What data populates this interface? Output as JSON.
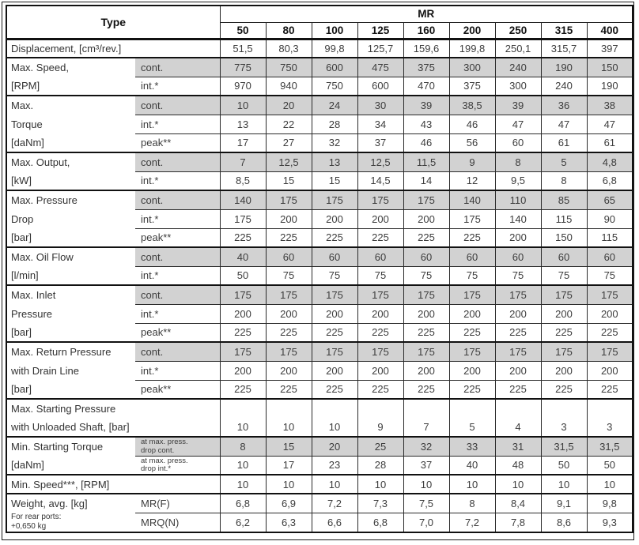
{
  "header": {
    "type_label": "Type",
    "group_label": "MR",
    "columns": [
      "50",
      "80",
      "100",
      "125",
      "160",
      "200",
      "250",
      "315",
      "400"
    ]
  },
  "sections": [
    {
      "rows": [
        {
          "label": "Displacement,  [cm³/rev.]",
          "full_label": true,
          "shaded": false,
          "values": [
            "51,5",
            "80,3",
            "99,8",
            "125,7",
            "159,6",
            "199,8",
            "250,1",
            "315,7",
            "397"
          ]
        }
      ]
    },
    {
      "rows": [
        {
          "label": "Max. Speed,",
          "type": "cont.",
          "shaded": true,
          "values": [
            "775",
            "750",
            "600",
            "475",
            "375",
            "300",
            "240",
            "190",
            "150"
          ]
        },
        {
          "label": "[RPM]",
          "type": "int.*",
          "shaded": false,
          "values": [
            "970",
            "940",
            "750",
            "600",
            "470",
            "375",
            "300",
            "240",
            "190"
          ]
        }
      ]
    },
    {
      "rows": [
        {
          "label": "Max.",
          "type": "cont.",
          "shaded": true,
          "values": [
            "10",
            "20",
            "24",
            "30",
            "39",
            "38,5",
            "39",
            "36",
            "38"
          ]
        },
        {
          "label": "Torque",
          "type": "int.*",
          "shaded": false,
          "values": [
            "13",
            "22",
            "28",
            "34",
            "43",
            "46",
            "47",
            "47",
            "47"
          ]
        },
        {
          "label": "[daNm]",
          "type": "peak**",
          "shaded": false,
          "values": [
            "17",
            "27",
            "32",
            "37",
            "46",
            "56",
            "60",
            "61",
            "61"
          ]
        }
      ]
    },
    {
      "rows": [
        {
          "label": "Max. Output,",
          "type": "cont.",
          "shaded": true,
          "values": [
            "7",
            "12,5",
            "13",
            "12,5",
            "11,5",
            "9",
            "8",
            "5",
            "4,8"
          ]
        },
        {
          "label": "[kW]",
          "type": "int.*",
          "shaded": false,
          "values": [
            "8,5",
            "15",
            "15",
            "14,5",
            "14",
            "12",
            "9,5",
            "8",
            "6,8"
          ]
        }
      ]
    },
    {
      "rows": [
        {
          "label": "Max. Pressure",
          "type": "cont.",
          "shaded": true,
          "values": [
            "140",
            "175",
            "175",
            "175",
            "175",
            "140",
            "110",
            "85",
            "65"
          ]
        },
        {
          "label": "Drop",
          "type": "int.*",
          "shaded": false,
          "values": [
            "175",
            "200",
            "200",
            "200",
            "200",
            "175",
            "140",
            "115",
            "90"
          ]
        },
        {
          "label": "[bar]",
          "type": "peak**",
          "shaded": false,
          "values": [
            "225",
            "225",
            "225",
            "225",
            "225",
            "225",
            "200",
            "150",
            "115"
          ]
        }
      ]
    },
    {
      "rows": [
        {
          "label": "Max. Oil Flow",
          "type": "cont.",
          "shaded": true,
          "values": [
            "40",
            "60",
            "60",
            "60",
            "60",
            "60",
            "60",
            "60",
            "60"
          ]
        },
        {
          "label": "[l/min]",
          "type": "int.*",
          "shaded": false,
          "values": [
            "50",
            "75",
            "75",
            "75",
            "75",
            "75",
            "75",
            "75",
            "75"
          ]
        }
      ]
    },
    {
      "rows": [
        {
          "label": "Max. Inlet",
          "type": "cont.",
          "shaded": true,
          "values": [
            "175",
            "175",
            "175",
            "175",
            "175",
            "175",
            "175",
            "175",
            "175"
          ]
        },
        {
          "label": "Pressure",
          "type": "int.*",
          "shaded": false,
          "values": [
            "200",
            "200",
            "200",
            "200",
            "200",
            "200",
            "200",
            "200",
            "200"
          ]
        },
        {
          "label": "[bar]",
          "type": "peak**",
          "shaded": false,
          "values": [
            "225",
            "225",
            "225",
            "225",
            "225",
            "225",
            "225",
            "225",
            "225"
          ]
        }
      ]
    },
    {
      "rows": [
        {
          "label": "Max. Return Pressure",
          "type": "cont.",
          "shaded": true,
          "values": [
            "175",
            "175",
            "175",
            "175",
            "175",
            "175",
            "175",
            "175",
            "175"
          ]
        },
        {
          "label": "with Drain Line",
          "type": "int.*",
          "shaded": false,
          "values": [
            "200",
            "200",
            "200",
            "200",
            "200",
            "200",
            "200",
            "200",
            "200"
          ]
        },
        {
          "label": "[bar]",
          "type": "peak**",
          "shaded": false,
          "values": [
            "225",
            "225",
            "225",
            "225",
            "225",
            "225",
            "225",
            "225",
            "225"
          ]
        }
      ]
    },
    {
      "values_merged": true,
      "rows": [
        {
          "label": "Max. Starting Pressure",
          "full_label": true,
          "shaded": false,
          "values": [
            "",
            "",
            "",
            "",
            "",
            "",
            "",
            "",
            ""
          ]
        },
        {
          "label": "with Unloaded Shaft, [bar]",
          "full_label": true,
          "shaded": false,
          "values": [
            "10",
            "10",
            "10",
            "9",
            "7",
            "5",
            "4",
            "3",
            "3"
          ]
        }
      ]
    },
    {
      "rows": [
        {
          "label": "Min. Starting Torque",
          "type": "at max. press.\ndrop cont.",
          "type_small": true,
          "shaded": true,
          "values": [
            "8",
            "15",
            "20",
            "25",
            "32",
            "33",
            "31",
            "31,5",
            "31,5"
          ]
        },
        {
          "label": "[daNm]",
          "type": "at max. press.\ndrop int.*",
          "type_small": true,
          "shaded": false,
          "values": [
            "10",
            "17",
            "23",
            "28",
            "37",
            "40",
            "48",
            "50",
            "50"
          ]
        }
      ]
    },
    {
      "rows": [
        {
          "label": "Min. Speed***,  [RPM]",
          "full_label": true,
          "shaded": false,
          "values": [
            "10",
            "10",
            "10",
            "10",
            "10",
            "10",
            "10",
            "10",
            "10"
          ]
        }
      ]
    },
    {
      "rows": [
        {
          "label": "Weight,  avg. [kg]",
          "type": "MR(F)",
          "shaded": false,
          "values": [
            "6,8",
            "6,9",
            "7,2",
            "7,3",
            "7,5",
            "8",
            "8,4",
            "9,1",
            "9,8"
          ]
        },
        {
          "label": "For rear ports:\n+0,650 kg",
          "label_small": true,
          "type": "MRQ(N)",
          "shaded": false,
          "values": [
            "6,2",
            "6,3",
            "6,6",
            "6,8",
            "7,0",
            "7,2",
            "7,8",
            "8,6",
            "9,3"
          ]
        }
      ]
    }
  ]
}
